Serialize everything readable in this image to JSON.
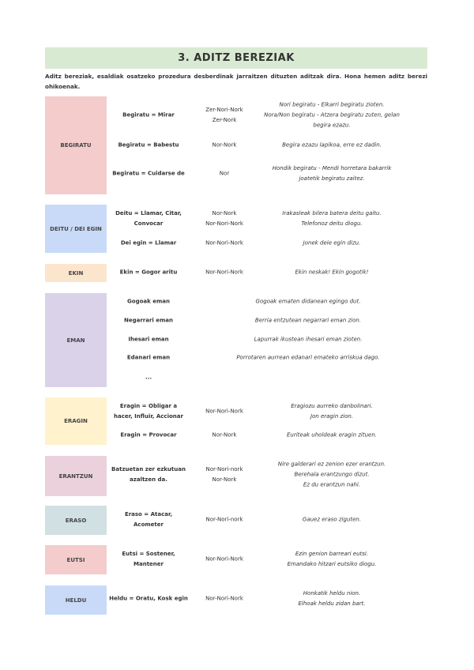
{
  "title": "3. ADITZ BEREZIAK",
  "intro": "Aditz bereziak, esaldiak osatzeko prozedura desberdinak jarraitzen dituzten aditzak dira. Hona hemen aditz berezi ohikoenak.",
  "blocks": [
    {
      "label": "BEGIRATU",
      "color": "#f4cccc",
      "rows": [
        {
          "translation": [
            "Begiratu = Mirar"
          ],
          "case": [
            "Zer-Nori-Nork",
            "Zer-Nork"
          ],
          "examples": [
            "Nori begiratu - Elkarri begiratu zioten.",
            "Nora/Non begiratu - Atzera begiratu zuten, gelan",
            "begira ezazu."
          ]
        },
        {
          "translation": [
            "Begiratu = Babestu"
          ],
          "case": [
            "Nor-Nork"
          ],
          "examples": [
            "Begira ezazu lapikoa, erre ez dadin."
          ]
        },
        {
          "translation": [
            "Begiratu = Cuidarse de"
          ],
          "case": [
            "Nor"
          ],
          "examples": [
            "Hondik begiratu - Mendi horretara bakarrik",
            "joatetik begiratu zaitez."
          ]
        }
      ]
    },
    {
      "label": "DEITU / DEI EGIN",
      "color": "#c9daf8",
      "rows": [
        {
          "translation": [
            "Deitu = Llamar, Citar,",
            "Convocar"
          ],
          "case": [
            "Nor-Nork",
            "Nor-Nori-Nork"
          ],
          "examples": [
            "Irakasleak bilera batera deitu gaitu.",
            "Telefonoz deitu diogu."
          ]
        },
        {
          "translation": [
            "Dei egin = Llamar"
          ],
          "case": [
            "Nor-Nori-Nork"
          ],
          "examples": [
            "Jonek deie egin dizu."
          ]
        }
      ]
    },
    {
      "label": "EKIN",
      "color": "#fce5cd",
      "rows": [
        {
          "translation": [
            "Ekin = Gogor aritu"
          ],
          "case": [
            "Nor-Nori-Nork"
          ],
          "examples": [
            "Ekin neskak! Ekin gogotik!"
          ]
        }
      ]
    },
    {
      "label": "EMAN",
      "color": "#d9d2e9",
      "rows": [
        {
          "translation": [
            "Gogoak eman"
          ],
          "case": [],
          "examples": [
            "Gogoak ematen didanean egingo dut."
          ]
        },
        {
          "translation": [
            "Negarrari eman"
          ],
          "case": [],
          "examples": [
            "Berria entzutean negarrari eman zion."
          ]
        },
        {
          "translation": [
            "Ihesari eman"
          ],
          "case": [],
          "examples": [
            "Lapurrak ikustean ihesari eman zioten."
          ]
        },
        {
          "translation": [
            "Edanari eman"
          ],
          "case": [],
          "examples": [
            "Porrotaren aurrean edanari emateko arriskua dago."
          ]
        },
        {
          "translation": [
            "..."
          ],
          "case": [],
          "examples": []
        }
      ]
    },
    {
      "label": "ERAGIN",
      "color": "#fff2cc",
      "rows": [
        {
          "translation": [
            "Eragin = Obligar a",
            "hacer, Influir, Accionar"
          ],
          "case": [
            "Nor-Nori-Nork"
          ],
          "examples": [
            "Eragiozu aurreko danbolinari.",
            "Jon eragin zion."
          ]
        },
        {
          "translation": [
            "Eragin = Provocar"
          ],
          "case": [
            "Nor-Nork"
          ],
          "examples": [
            "Euriteak uholdeak eragin zituen."
          ]
        }
      ]
    },
    {
      "label": "ERANTZUN",
      "color": "#ead1dc",
      "rows": [
        {
          "translation": [
            "Batzuetan zer ezkutuan",
            "azaltzen da."
          ],
          "case": [
            "Nor-Nori-nork",
            "Nor-Nork"
          ],
          "examples": [
            "Nire galderari ez zenion ezer erantzun.",
            "Berehala erantzungo dizut.",
            "Ez du erantzun nahi."
          ]
        }
      ]
    },
    {
      "label": "ERASO",
      "color": "#d0e0e3",
      "rows": [
        {
          "translation": [
            "Eraso = Atacar,",
            "Acometer"
          ],
          "case": [
            "Nor-Nori-nork"
          ],
          "examples": [
            "Gauez eraso ziguten."
          ]
        }
      ]
    },
    {
      "label": "EUTSI",
      "color": "#f4cccc",
      "rows": [
        {
          "translation": [
            "Eutsi = Sostener,",
            "Mantener"
          ],
          "case": [
            "Nor-Nori-Nork"
          ],
          "examples": [
            "Ezin genion barreari eutsi.",
            "Emandako hitzari eutsiko diogu."
          ]
        }
      ]
    },
    {
      "label": "HELDU",
      "color": "#c9daf8",
      "rows": [
        {
          "translation": [
            "Heldu = Oratu, Kosk egin"
          ],
          "case": [
            "Nor-Nori-Nork"
          ],
          "examples": [
            "Honkatik heldu nion.",
            "Elhoak heldu zidan bart."
          ]
        }
      ]
    }
  ]
}
